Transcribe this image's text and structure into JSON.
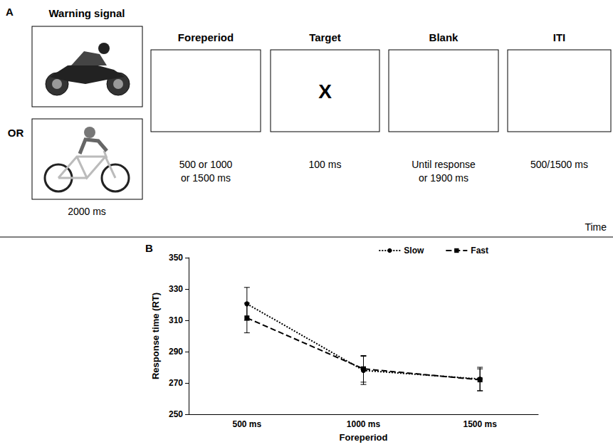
{
  "panel_a": {
    "letter": "A",
    "or": "OR",
    "time_label": "Time",
    "steps": [
      {
        "title": "Warning signal",
        "duration": "2000 ms"
      },
      {
        "title": "Foreperiod",
        "duration": "500 or 1000 or 1500 ms"
      },
      {
        "title": "Target",
        "content": "X",
        "duration": "100 ms"
      },
      {
        "title": "Blank",
        "duration": "Until response or 1900 ms"
      },
      {
        "title": "ITI",
        "duration": "500/1500 ms"
      }
    ]
  },
  "chart_data": {
    "type": "line",
    "panel_label": "B",
    "x_label": "Foreperiod",
    "y_label": "Response time (RT)",
    "categories": [
      "500 ms",
      "1000 ms",
      "1500 ms"
    ],
    "series": [
      {
        "name": "Slow",
        "color": "#000000",
        "marker": "circle",
        "line_style": "dotted",
        "values": [
          320.5,
          278,
          272.5
        ],
        "errors": [
          10.5,
          9,
          7.5
        ]
      },
      {
        "name": "Fast",
        "color": "#000000",
        "marker": "square",
        "line_style": "dashed",
        "values": [
          311.5,
          279,
          272
        ],
        "errors": [
          9.5,
          8.5,
          7
        ]
      }
    ],
    "ylim": [
      250,
      350
    ],
    "yticks": [
      250,
      270,
      290,
      310,
      330,
      350
    ],
    "grid": false,
    "legend": "top-right"
  }
}
